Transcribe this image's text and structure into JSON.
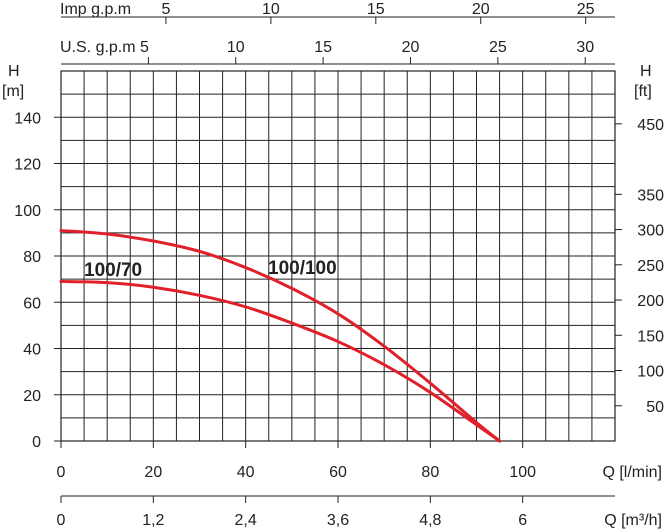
{
  "chart_data": {
    "type": "line",
    "x_axis": {
      "label": "Q [l/min]",
      "ticks": [
        0,
        20,
        40,
        60,
        80,
        100
      ],
      "range": [
        0,
        120
      ],
      "grid_step": 5
    },
    "x_axis_m3h": {
      "label": "Q [m³/h]",
      "ticks": [
        "0",
        "1,2",
        "2,4",
        "3,6",
        "4,8",
        "6"
      ],
      "values": [
        0,
        1.2,
        2.4,
        3.6,
        4.8,
        6
      ]
    },
    "x_axis_usgpm": {
      "label": "U.S. g.p.m",
      "ticks": [
        5,
        10,
        15,
        20,
        25,
        30
      ],
      "l_per_min_factor": 3.785
    },
    "x_axis_impgpm": {
      "label": "Imp g.p.m",
      "ticks": [
        5,
        10,
        15,
        20,
        25
      ],
      "l_per_min_factor": 4.546
    },
    "y_axis_m": {
      "label_top": "H",
      "label_unit": "[m]",
      "ticks": [
        0,
        20,
        40,
        60,
        80,
        100,
        120,
        140
      ],
      "range": [
        0,
        160
      ],
      "grid_step": 10
    },
    "y_axis_ft": {
      "label_top": "H",
      "label_unit": "[ft]",
      "ticks": [
        50,
        100,
        150,
        200,
        250,
        300,
        350,
        450
      ],
      "m_per_ft": 0.3048
    },
    "series": [
      {
        "name": "100/100",
        "color": "#e0202a",
        "x": [
          0,
          10,
          20,
          30,
          40,
          50,
          60,
          70,
          80,
          90,
          95
        ],
        "y": [
          91,
          89.5,
          86.5,
          82,
          75,
          66,
          55,
          41,
          25,
          8,
          0
        ]
      },
      {
        "name": "100/70",
        "color": "#e0202a",
        "x": [
          0,
          10,
          20,
          30,
          40,
          50,
          60,
          70,
          80,
          90,
          95
        ],
        "y": [
          69,
          68.5,
          66.5,
          63,
          58,
          51,
          43,
          33,
          21,
          7,
          0
        ]
      }
    ]
  }
}
